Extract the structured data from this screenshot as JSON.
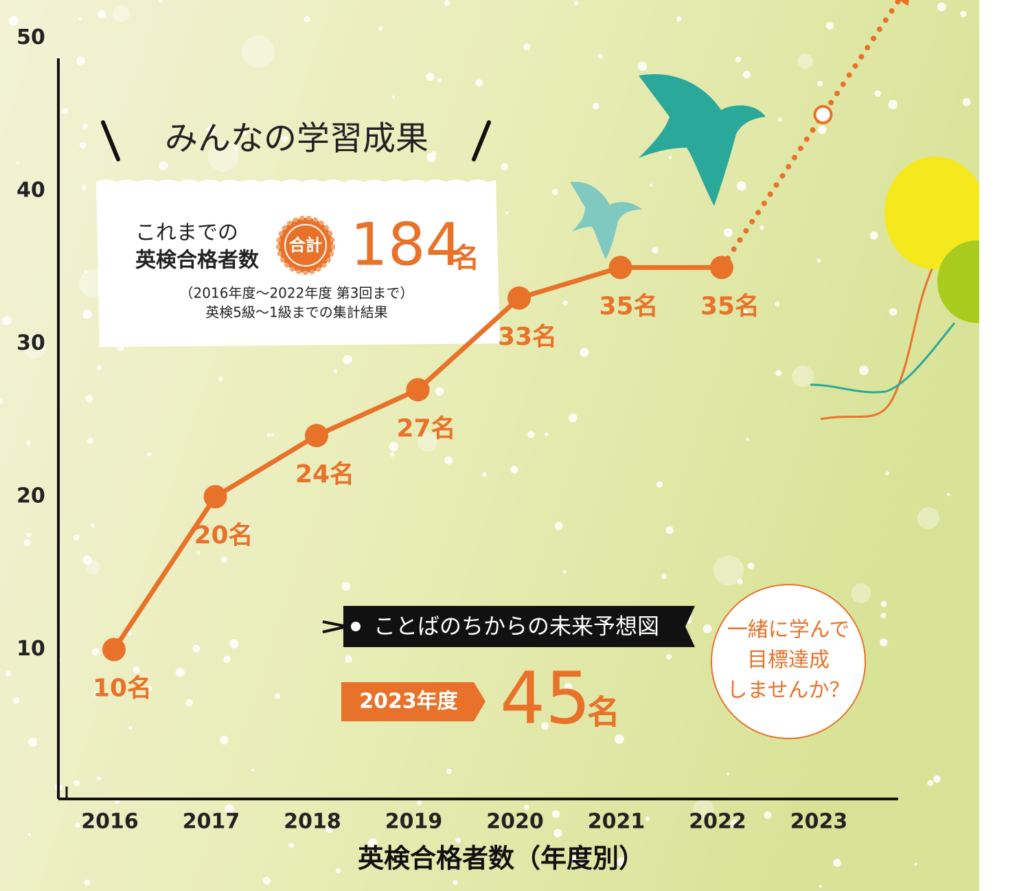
{
  "chart_data": {
    "type": "line",
    "title": "みんなの学習成果",
    "x_label": "英検合格者数（年度別）",
    "categories": [
      "2016",
      "2017",
      "2018",
      "2019",
      "2020",
      "2021",
      "2022",
      "2023"
    ],
    "values": [
      10,
      20,
      24,
      27,
      33,
      35,
      35,
      null
    ],
    "value_labels": [
      "10名",
      "20名",
      "24名",
      "27名",
      "33名",
      "35名",
      "35名",
      null
    ],
    "forecast_values": [
      null,
      null,
      null,
      null,
      null,
      null,
      null,
      45
    ],
    "color": "#e8722a",
    "ylim": [
      0,
      52.5
    ],
    "yticks": [
      10,
      20,
      30,
      40,
      50
    ],
    "summary": {
      "line1": "これまでの",
      "line2": "英検合格者数",
      "badge": "合計",
      "total": 184,
      "unit": "名",
      "note1": "（2016年度～2022年度 第3回まで）",
      "note2": "英検5級～1級までの集計結果"
    },
    "forecast": {
      "banner": "ことばのちからの未来予想図",
      "tag": "2023年度",
      "unit": "名"
    },
    "callout": [
      "一緒に学んで",
      "目標達成",
      "しませんか？"
    ]
  }
}
